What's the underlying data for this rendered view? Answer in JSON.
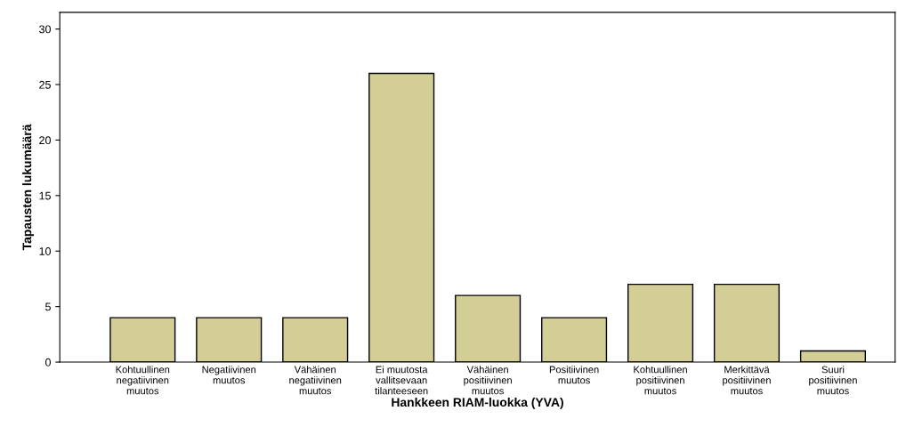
{
  "chart_data": {
    "type": "bar",
    "xlabel": "Hankkeen RIAM-luokka (YVA)",
    "ylabel": "Tapausten lukumäärä",
    "categories": [
      "Kohtuullinen\nnegatiivinen\nmuutos",
      "Negatiivinen\nmuutos",
      "Vähäinen\nnegatiivinen\nmuutos",
      "Ei muutosta\nvallitsevaan\ntilanteeseen",
      "Vähäinen\npositiivinen\nmuutos",
      "Positiivinen\nmuutos",
      "Kohtuullinen\npositiivinen\nmuutos",
      "Merkittävä\npositiivinen\nmuutos",
      "Suuri\npositiivinen\nmuutos"
    ],
    "values": [
      4,
      4,
      4,
      26,
      6,
      4,
      7,
      7,
      1
    ],
    "color": "#d3cd96",
    "ylim": [
      0,
      31.5
    ],
    "yticks": [
      0,
      5,
      10,
      15,
      20,
      25,
      30
    ],
    "grid": false
  }
}
